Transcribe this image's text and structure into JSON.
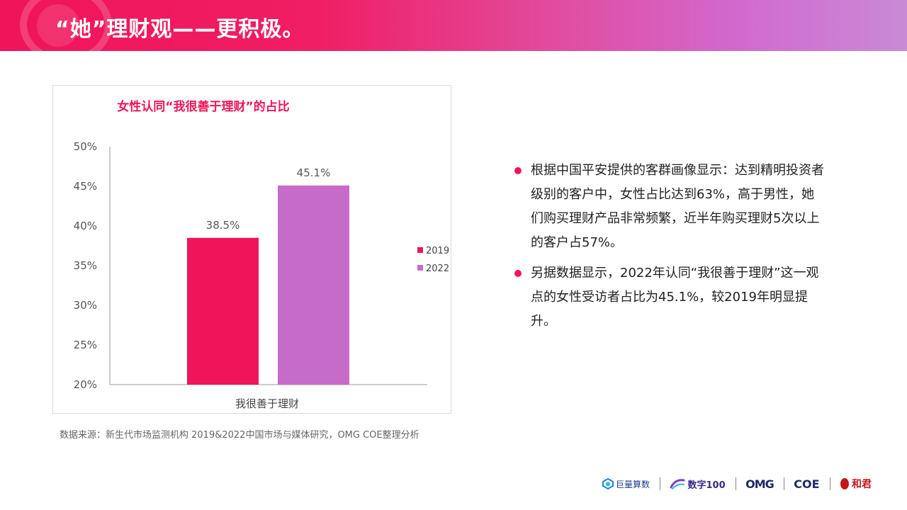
{
  "header": {
    "title": "“她”理财观——更积极。"
  },
  "chart_data": {
    "type": "bar",
    "title": "女性认同“我很善于理财”的占比",
    "categories": [
      "我很善于理财"
    ],
    "series": [
      {
        "name": "2019",
        "values": [
          38.5
        ],
        "label": "38.5%",
        "color": "#f0145a"
      },
      {
        "name": "2022",
        "values": [
          45.1
        ],
        "label": "45.1%",
        "color": "#c76bc9"
      }
    ],
    "ylim": [
      20,
      50
    ],
    "yticks": [
      "20%",
      "25%",
      "30%",
      "35%",
      "40%",
      "45%",
      "50%"
    ],
    "ytick_values": [
      20,
      25,
      30,
      35,
      40,
      45,
      50
    ],
    "legend": "right"
  },
  "source": "数据来源：新生代市场监测机构 2019&2022中国市场与媒体研究，OMG COE整理分析",
  "bullets": [
    "根据中国平安提供的客群画像显示：达到精明投资者级别的客户中，女性占比达到63%，高于男性，她们购买理财产品非常频繁，近半年购买理财5次以上的客户占57%。",
    "另据数据显示，2022年认同“我很善于理财”这一观点的女性受访者占比为45.1%，较2019年明显提升。"
  ],
  "logos": {
    "juliang": "巨量算数",
    "digital100": "数字100",
    "omg": "OMG",
    "coe": "COE",
    "hejun": "和君"
  }
}
